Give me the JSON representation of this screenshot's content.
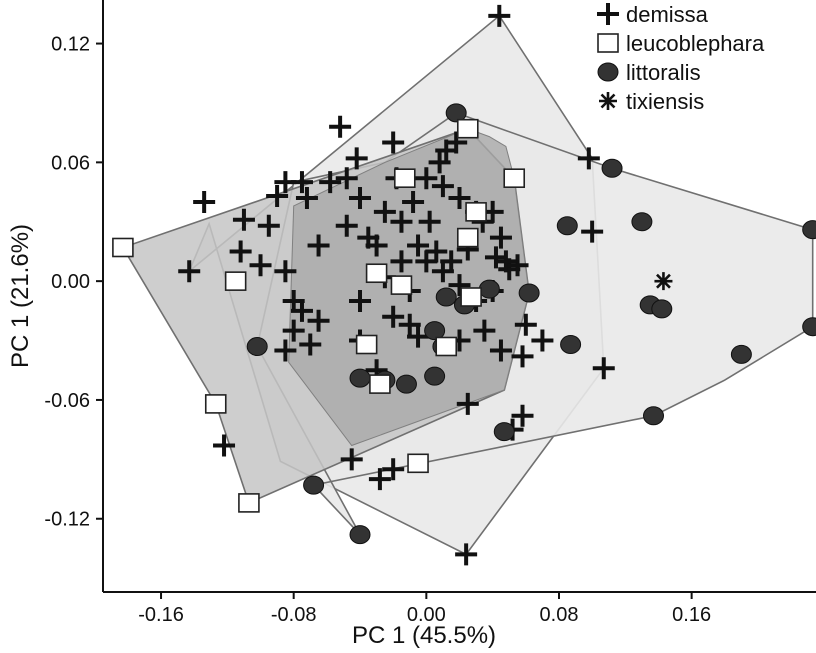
{
  "chart_data": {
    "type": "scatter",
    "title": "",
    "xlabel": "PC 1 (45.5%)",
    "ylabel": "PC 1 (21.6%)",
    "xlim": [
      -0.195,
      0.235
    ],
    "ylim": [
      -0.157,
      0.142
    ],
    "xticks": [
      "-0.16",
      "-0.08",
      "0.00",
      "0.08",
      "0.16"
    ],
    "xtick_values": [
      -0.16,
      -0.08,
      0.0,
      0.08,
      0.16
    ],
    "yticks": [
      "0.12",
      "0.06",
      "0.00",
      "-0.06",
      "-0.12"
    ],
    "ytick_values": [
      0.12,
      0.06,
      0.0,
      -0.06,
      -0.12
    ],
    "grid": false,
    "legend_position": "top-right",
    "series": [
      {
        "name": "demissa",
        "marker": "plus",
        "hull_fill": "#e9e9e9",
        "hull": [
          [
            0.044,
            0.134
          ],
          [
            0.1,
            0.062
          ],
          [
            0.107,
            -0.044
          ],
          [
            0.024,
            -0.138
          ],
          [
            -0.088,
            -0.091
          ],
          [
            -0.131,
            0.029
          ],
          [
            -0.143,
            0.005
          ]
        ],
        "points": [
          [
            0.044,
            0.134
          ],
          [
            -0.052,
            0.078
          ],
          [
            -0.02,
            0.07
          ],
          [
            -0.042,
            0.062
          ],
          [
            -0.018,
            0.052
          ],
          [
            0.0,
            0.052
          ],
          [
            0.008,
            0.06
          ],
          [
            0.012,
            0.066
          ],
          [
            0.018,
            0.07
          ],
          [
            0.098,
            0.062
          ],
          [
            0.1,
            0.025
          ],
          [
            -0.134,
            0.04
          ],
          [
            -0.11,
            0.031
          ],
          [
            -0.112,
            0.015
          ],
          [
            -0.143,
            0.005
          ],
          [
            -0.1,
            0.008
          ],
          [
            -0.095,
            0.028
          ],
          [
            -0.09,
            0.043
          ],
          [
            -0.085,
            0.05
          ],
          [
            -0.075,
            0.05
          ],
          [
            -0.072,
            0.042
          ],
          [
            -0.058,
            0.05
          ],
          [
            -0.048,
            0.052
          ],
          [
            -0.04,
            0.042
          ],
          [
            -0.035,
            0.022
          ],
          [
            -0.025,
            0.035
          ],
          [
            -0.015,
            0.03
          ],
          [
            -0.008,
            0.04
          ],
          [
            0.002,
            0.03
          ],
          [
            0.01,
            0.048
          ],
          [
            0.02,
            0.042
          ],
          [
            0.03,
            0.035
          ],
          [
            0.034,
            0.03
          ],
          [
            0.04,
            0.035
          ],
          [
            0.045,
            0.022
          ],
          [
            -0.065,
            0.018
          ],
          [
            -0.048,
            0.028
          ],
          [
            -0.03,
            0.018
          ],
          [
            -0.015,
            0.01
          ],
          [
            -0.005,
            0.018
          ],
          [
            0.006,
            0.015
          ],
          [
            0.015,
            0.01
          ],
          [
            0.025,
            0.016
          ],
          [
            0.042,
            0.012
          ],
          [
            0.05,
            0.006
          ],
          [
            0.055,
            0.008
          ],
          [
            -0.085,
            0.005
          ],
          [
            -0.08,
            -0.01
          ],
          [
            -0.075,
            -0.015
          ],
          [
            -0.065,
            -0.02
          ],
          [
            -0.04,
            -0.01
          ],
          [
            -0.025,
            0.002
          ],
          [
            -0.01,
            -0.005
          ],
          [
            0.0,
            0.01
          ],
          [
            0.01,
            0.005
          ],
          [
            0.02,
            -0.002
          ],
          [
            0.03,
            -0.01
          ],
          [
            0.04,
            -0.005
          ],
          [
            0.048,
            0.01
          ],
          [
            -0.08,
            -0.025
          ],
          [
            -0.085,
            -0.035
          ],
          [
            -0.07,
            -0.032
          ],
          [
            -0.04,
            -0.03
          ],
          [
            -0.02,
            -0.018
          ],
          [
            -0.01,
            -0.022
          ],
          [
            -0.005,
            -0.028
          ],
          [
            0.02,
            -0.03
          ],
          [
            0.035,
            -0.025
          ],
          [
            0.045,
            -0.035
          ],
          [
            0.06,
            -0.022
          ],
          [
            0.07,
            -0.03
          ],
          [
            0.058,
            -0.038
          ],
          [
            -0.03,
            -0.045
          ],
          [
            0.025,
            -0.062
          ],
          [
            0.058,
            -0.068
          ],
          [
            0.052,
            -0.075
          ],
          [
            -0.045,
            -0.09
          ],
          [
            -0.02,
            -0.095
          ],
          [
            -0.028,
            -0.1
          ],
          [
            0.107,
            -0.044
          ],
          [
            0.024,
            -0.138
          ],
          [
            -0.122,
            -0.083
          ]
        ]
      },
      {
        "name": "leucoblephara",
        "marker": "square",
        "hull_fill": "#c6c6c6",
        "hull": [
          [
            -0.183,
            0.017
          ],
          [
            0.025,
            0.077
          ],
          [
            0.053,
            0.052
          ],
          [
            0.062,
            -0.006
          ],
          [
            0.047,
            -0.055
          ],
          [
            -0.107,
            -0.112
          ],
          [
            -0.127,
            -0.062
          ]
        ],
        "points": [
          [
            -0.183,
            0.017
          ],
          [
            0.025,
            0.077
          ],
          [
            0.053,
            0.052
          ],
          [
            -0.127,
            -0.062
          ],
          [
            -0.107,
            -0.112
          ],
          [
            -0.005,
            -0.092
          ],
          [
            0.03,
            0.035
          ],
          [
            0.025,
            0.022
          ],
          [
            -0.013,
            0.052
          ],
          [
            -0.115,
            0.0
          ],
          [
            -0.03,
            0.004
          ],
          [
            -0.015,
            -0.002
          ],
          [
            0.027,
            -0.008
          ],
          [
            -0.036,
            -0.032
          ],
          [
            0.012,
            -0.033
          ],
          [
            -0.028,
            -0.052
          ]
        ]
      },
      {
        "name": "littoralis",
        "marker": "circle",
        "hull_fill": "#e9e9e9",
        "hull": [
          [
            0.018,
            0.085
          ],
          [
            0.112,
            0.057
          ],
          [
            0.233,
            0.026
          ],
          [
            0.233,
            -0.023
          ],
          [
            0.18,
            -0.05
          ],
          [
            0.137,
            -0.068
          ],
          [
            -0.068,
            -0.103
          ],
          [
            -0.04,
            -0.128
          ],
          [
            -0.102,
            -0.033
          ],
          [
            -0.08,
            0.05
          ],
          [
            -0.025,
            0.06
          ]
        ],
        "points": [
          [
            0.018,
            0.085
          ],
          [
            0.112,
            0.057
          ],
          [
            0.233,
            0.026
          ],
          [
            0.233,
            -0.023
          ],
          [
            0.19,
            -0.037
          ],
          [
            0.137,
            -0.068
          ],
          [
            0.13,
            0.03
          ],
          [
            0.135,
            -0.012
          ],
          [
            0.142,
            -0.014
          ],
          [
            0.085,
            0.028
          ],
          [
            0.062,
            -0.006
          ],
          [
            0.087,
            -0.032
          ],
          [
            0.023,
            -0.012
          ],
          [
            0.005,
            -0.025
          ],
          [
            0.01,
            -0.033
          ],
          [
            0.005,
            -0.048
          ],
          [
            -0.04,
            -0.049
          ],
          [
            -0.025,
            -0.05
          ],
          [
            -0.012,
            -0.052
          ],
          [
            -0.102,
            -0.033
          ],
          [
            -0.068,
            -0.103
          ],
          [
            -0.04,
            -0.128
          ],
          [
            0.047,
            -0.076
          ],
          [
            0.012,
            -0.008
          ],
          [
            0.038,
            -0.004
          ]
        ]
      },
      {
        "name": "tixiensis",
        "marker": "asterisk",
        "hull_fill": null,
        "hull": [],
        "points": [
          [
            0.143,
            0.0
          ]
        ]
      }
    ],
    "overlap_fill": "#a9a9a9",
    "overlap_polygon": [
      [
        0.025,
        0.077
      ],
      [
        0.038,
        0.073
      ],
      [
        0.048,
        0.068
      ],
      [
        0.053,
        0.052
      ],
      [
        0.062,
        -0.006
      ],
      [
        0.047,
        -0.055
      ],
      [
        -0.045,
        -0.083
      ],
      [
        -0.083,
        -0.041
      ],
      [
        -0.08,
        0.038
      ],
      [
        -0.025,
        0.06
      ]
    ]
  }
}
